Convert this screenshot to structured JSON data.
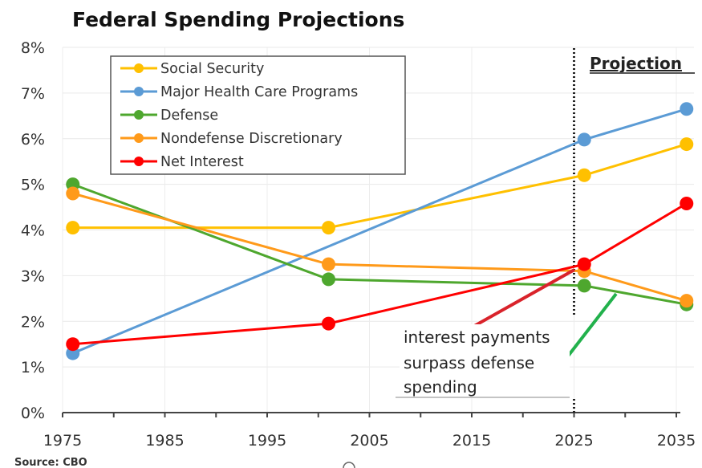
{
  "chart_data": {
    "type": "line",
    "title": "Federal Spending Projections",
    "xlabel": "",
    "ylabel": "",
    "x_ticks": [
      "1975",
      "1985",
      "1995",
      "2005",
      "2015",
      "2025",
      "2035"
    ],
    "x_tick_values": [
      1975,
      1985,
      1995,
      2005,
      2015,
      2025,
      2035
    ],
    "xlim": [
      1975,
      2036
    ],
    "y_ticks": [
      "0%",
      "1%",
      "2%",
      "3%",
      "4%",
      "5%",
      "6%",
      "7%",
      "8%"
    ],
    "y_tick_values": [
      0,
      1,
      2,
      3,
      4,
      5,
      6,
      7,
      8
    ],
    "ylim": [
      0,
      8
    ],
    "grid": true,
    "legend_position": "top-left",
    "series": [
      {
        "name": "Social Security",
        "color": "#FFC000",
        "x": [
          1976,
          2001,
          2026,
          2036
        ],
        "values": [
          4.05,
          4.05,
          5.2,
          5.88
        ],
        "markers": [
          true,
          true,
          true,
          true
        ]
      },
      {
        "name": "Major Health Care Programs",
        "color": "#5B9BD5",
        "x": [
          1976,
          2026,
          2036
        ],
        "values": [
          1.3,
          5.98,
          6.65
        ],
        "markers": [
          true,
          true,
          true
        ]
      },
      {
        "name": "Defense",
        "color": "#4EA72E",
        "x": [
          1976,
          2001,
          2026,
          2036
        ],
        "values": [
          5.0,
          2.92,
          2.78,
          2.37
        ],
        "markers": [
          true,
          true,
          true,
          true
        ]
      },
      {
        "name": "Nondefense Discretionary",
        "color": "#FF9A1A",
        "x": [
          1976,
          2001,
          2026,
          2036
        ],
        "values": [
          4.8,
          3.25,
          3.1,
          2.45
        ],
        "markers": [
          true,
          true,
          true,
          true
        ]
      },
      {
        "name": "Net Interest",
        "color": "#FF0000",
        "x": [
          1976,
          2001,
          2026,
          2036
        ],
        "values": [
          1.5,
          1.95,
          3.25,
          4.58
        ],
        "markers": [
          true,
          true,
          true,
          true
        ]
      }
    ],
    "projection_marker": {
      "x": 2025,
      "label": "Projection"
    },
    "annotations": [
      {
        "text_lines": [
          "interest payments",
          "surpass defense",
          "spending"
        ]
      }
    ],
    "source": "Source: CBO"
  }
}
